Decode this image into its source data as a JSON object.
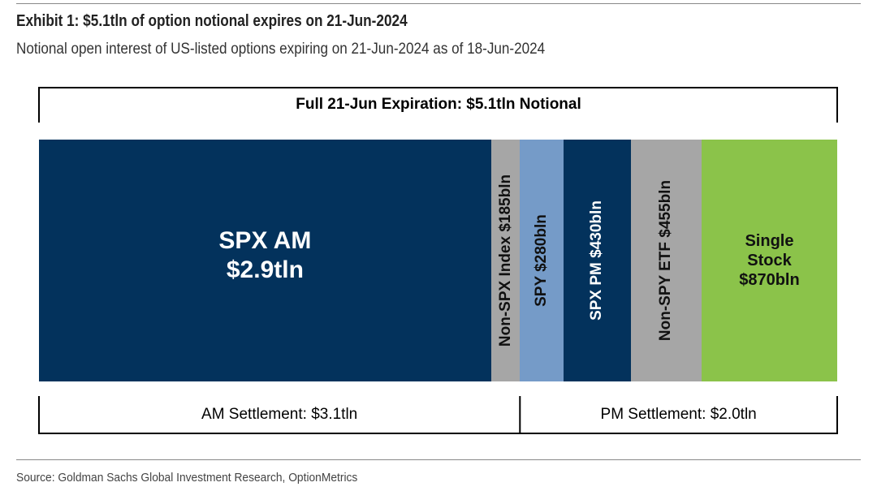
{
  "title": "Exhibit 1: $5.1tln of option notional expires on 21-Jun-2024",
  "subtitle": "Notional open interest of US-listed options expiring on 21-Jun-2024 as of 18-Jun-2024",
  "source": "Source: Goldman Sachs Global Investment Research, OptionMetrics",
  "chart_data": {
    "type": "bar",
    "orientation": "horizontal-stacked-single",
    "unit": "USD bln",
    "top_bracket_label": "Full 21-Jun Expiration: $5.1tln Notional",
    "segments": [
      {
        "label": "SPX AM",
        "value_label": "$2.9tln",
        "value": 2900,
        "color": "#03325c",
        "text_color": "#ffffff",
        "vertical": false
      },
      {
        "label": "Non-SPX Index",
        "value_label": "$185bln",
        "value": 185,
        "color": "#a6a6a6",
        "text_color": "#111111",
        "vertical": true
      },
      {
        "label": "SPY",
        "value_label": "$280bln",
        "value": 280,
        "color": "#759bc8",
        "text_color": "#111111",
        "vertical": true
      },
      {
        "label": "SPX PM",
        "value_label": "$430bln",
        "value": 430,
        "color": "#03325c",
        "text_color": "#ffffff",
        "vertical": true
      },
      {
        "label": "Non-SPY ETF",
        "value_label": "$455bln",
        "value": 455,
        "color": "#a6a6a6",
        "text_color": "#111111",
        "vertical": true
      },
      {
        "label": "Single Stock",
        "value_label": "$870bln",
        "value": 870,
        "color": "#8bc34a",
        "text_color": "#111111",
        "vertical": false
      }
    ],
    "groups": [
      {
        "label": "AM Settlement: $3.1tln",
        "segments": [
          0,
          1
        ]
      },
      {
        "label": "PM Settlement: $2.0tln",
        "segments": [
          2,
          3,
          4,
          5
        ]
      }
    ]
  }
}
